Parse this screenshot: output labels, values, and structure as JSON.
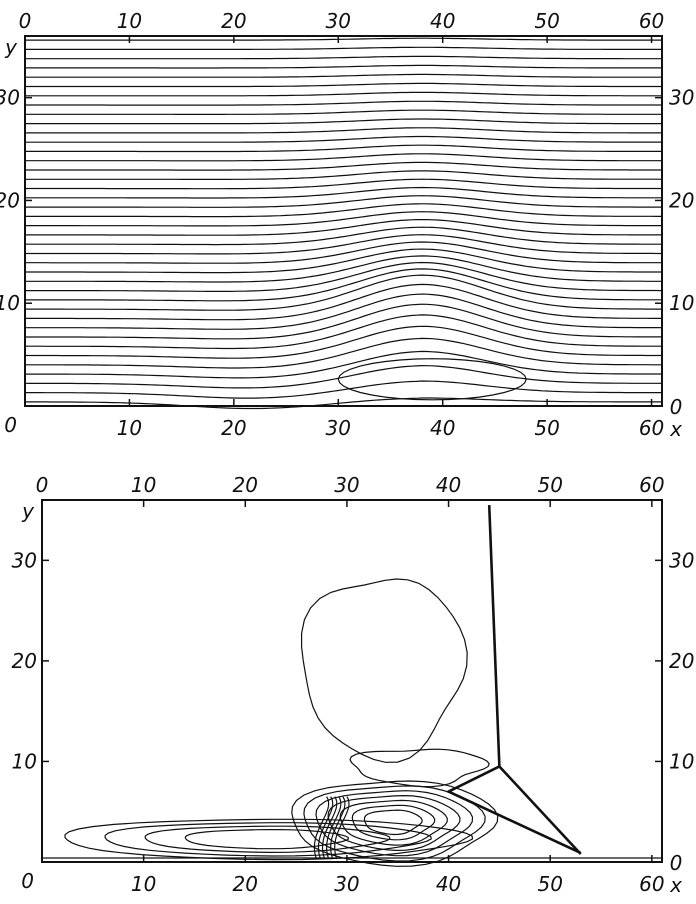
{
  "chart_data": [
    {
      "type": "contour",
      "panel": "top",
      "xlabel": "x",
      "ylabel": "y",
      "xlim": [
        0,
        61
      ],
      "ylim": [
        0,
        36
      ],
      "x_ticks": [
        "0",
        "10",
        "20",
        "30",
        "40",
        "50",
        "60"
      ],
      "y_ticks_left": [
        "10",
        "20",
        "30"
      ],
      "y_ticks_right": [
        "10",
        "20",
        "30"
      ],
      "bottom_ticks": [
        "10",
        "20",
        "30",
        "40",
        "50",
        "60"
      ],
      "y_zero_left": "0",
      "y_zero_right": "0",
      "bump": {
        "center_x": 38,
        "crest_y": 9.5,
        "extent_x": [
          28,
          50
        ]
      },
      "contour_count": 40,
      "contour_style": "streamlines"
    },
    {
      "type": "contour",
      "panel": "bottom",
      "xlabel": "x",
      "ylabel": "y",
      "xlim": [
        0,
        61
      ],
      "ylim": [
        0,
        36
      ],
      "x_ticks": [
        "0",
        "10",
        "20",
        "30",
        "40",
        "50",
        "60"
      ],
      "y_ticks_left": [
        "10",
        "20",
        "30"
      ],
      "y_ticks_right": [
        "10",
        "20",
        "30"
      ],
      "bottom_ticks": [
        "10",
        "20",
        "30",
        "40",
        "50",
        "60"
      ],
      "y_zero_left": "0",
      "y_zero_right": "0",
      "features": {
        "shock_vertical_x": 44,
        "shock_triple_point": [
          45,
          9.5
        ],
        "shock_reflection_end": [
          53,
          0.8
        ],
        "bubble_region": {
          "x": [
            25,
            42
          ],
          "y": [
            11,
            28
          ]
        }
      },
      "contour_style": "density-contours"
    }
  ]
}
